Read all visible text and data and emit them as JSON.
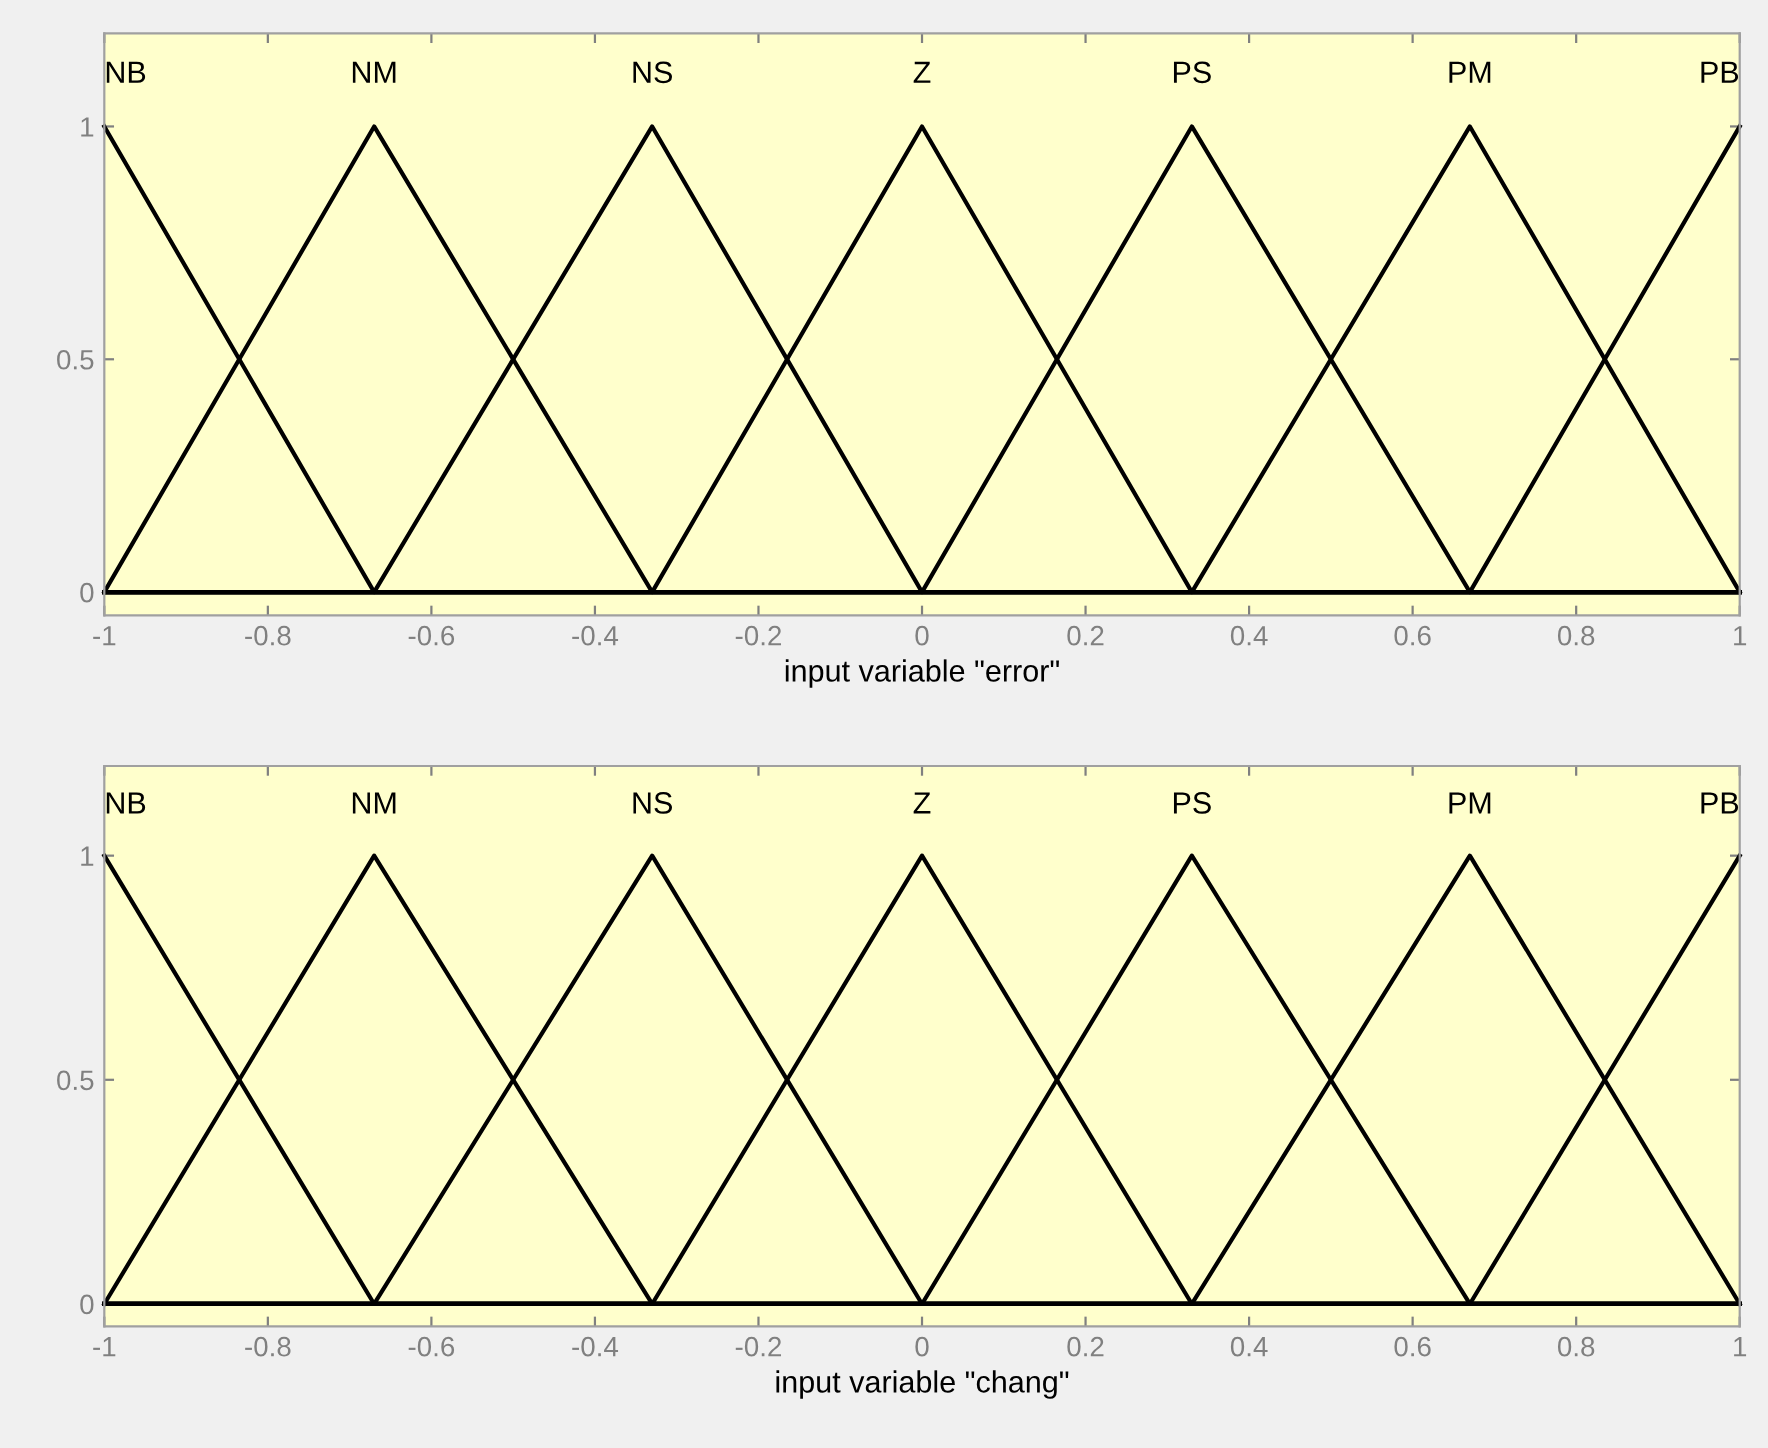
{
  "chart_data": [
    {
      "type": "line",
      "xlabel": "input variable \"error\"",
      "xlim": [
        -1,
        1
      ],
      "ylim": [
        -0.05,
        1.2
      ],
      "xticks": [
        -1,
        -0.8,
        -0.6,
        -0.4,
        -0.2,
        0,
        0.2,
        0.4,
        0.6,
        0.8,
        1
      ],
      "yticks": [
        0,
        0.5,
        1
      ],
      "grid": false,
      "legend": false,
      "marker": "none",
      "line_style": "solid",
      "series": [
        {
          "name": "NB",
          "color": "#000000",
          "x": [
            -1,
            -0.67,
            1
          ],
          "values": [
            1,
            0,
            0
          ]
        },
        {
          "name": "NM",
          "color": "#000000",
          "x": [
            -1,
            -0.67,
            -0.33,
            1
          ],
          "values": [
            0,
            1,
            0,
            0
          ]
        },
        {
          "name": "NS",
          "color": "#000000",
          "x": [
            -1,
            -0.67,
            -0.33,
            0,
            1
          ],
          "values": [
            0,
            0,
            1,
            0,
            0
          ]
        },
        {
          "name": "Z",
          "color": "#000000",
          "x": [
            -1,
            -0.33,
            0,
            0.33,
            1
          ],
          "values": [
            0,
            0,
            1,
            0,
            0
          ]
        },
        {
          "name": "PS",
          "color": "#000000",
          "x": [
            -1,
            0,
            0.33,
            0.67,
            1
          ],
          "values": [
            0,
            0,
            1,
            0,
            0
          ]
        },
        {
          "name": "PM",
          "color": "#000000",
          "x": [
            -1,
            0.33,
            0.67,
            1
          ],
          "values": [
            0,
            0,
            1,
            0
          ]
        },
        {
          "name": "PB",
          "color": "#000000",
          "x": [
            -1,
            0.67,
            1
          ],
          "values": [
            0,
            0,
            1
          ]
        }
      ]
    },
    {
      "type": "line",
      "xlabel": "input variable \"chang\"",
      "xlim": [
        -1,
        1
      ],
      "ylim": [
        -0.05,
        1.2
      ],
      "xticks": [
        -1,
        -0.8,
        -0.6,
        -0.4,
        -0.2,
        0,
        0.2,
        0.4,
        0.6,
        0.8,
        1
      ],
      "yticks": [
        0,
        0.5,
        1
      ],
      "grid": false,
      "legend": false,
      "marker": "none",
      "line_style": "solid",
      "series": [
        {
          "name": "NB",
          "color": "#000000",
          "x": [
            -1,
            -0.67,
            1
          ],
          "values": [
            1,
            0,
            0
          ]
        },
        {
          "name": "NM",
          "color": "#000000",
          "x": [
            -1,
            -0.67,
            -0.33,
            1
          ],
          "values": [
            0,
            1,
            0,
            0
          ]
        },
        {
          "name": "NS",
          "color": "#000000",
          "x": [
            -1,
            -0.67,
            -0.33,
            0,
            1
          ],
          "values": [
            0,
            0,
            1,
            0,
            0
          ]
        },
        {
          "name": "Z",
          "color": "#000000",
          "x": [
            -1,
            -0.33,
            0,
            0.33,
            1
          ],
          "values": [
            0,
            0,
            1,
            0,
            0
          ]
        },
        {
          "name": "PS",
          "color": "#000000",
          "x": [
            -1,
            0,
            0.33,
            0.67,
            1
          ],
          "values": [
            0,
            0,
            1,
            0,
            0
          ]
        },
        {
          "name": "PM",
          "color": "#000000",
          "x": [
            -1,
            0.33,
            0.67,
            1
          ],
          "values": [
            0,
            0,
            1,
            0
          ]
        },
        {
          "name": "PB",
          "color": "#000000",
          "x": [
            -1,
            0.67,
            1
          ],
          "values": [
            0,
            0,
            1
          ]
        }
      ]
    }
  ]
}
